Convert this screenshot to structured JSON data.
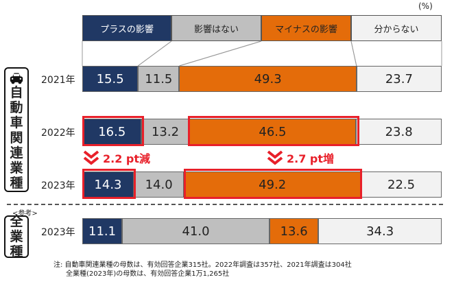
{
  "unit": "(%)",
  "legend": [
    {
      "key": "plus",
      "label": "プラスの影響"
    },
    {
      "key": "none",
      "label": "影響はない"
    },
    {
      "key": "minus",
      "label": "マイナスの影響"
    },
    {
      "key": "unknown",
      "label": "分からない"
    }
  ],
  "colors": {
    "plus": "#203864",
    "none": "#bfbfbf",
    "minus": "#e46c0a",
    "unknown": "#f2f2f2",
    "highlight": "#e8202a"
  },
  "group_auto": {
    "label_chars": [
      "自",
      "動",
      "車",
      "関",
      "連",
      "業",
      "種"
    ],
    "icon": "car-icon"
  },
  "group_all": {
    "label_chars": [
      "全",
      "業",
      "種"
    ],
    "ref_label": "<参考>"
  },
  "chart_data": {
    "type": "bar",
    "orientation": "horizontal-stacked-100",
    "categories": [
      "自動車関連業種 2021年",
      "自動車関連業種 2022年",
      "自動車関連業種 2023年",
      "全業種 2023年"
    ],
    "year_labels": [
      "2021年",
      "2022年",
      "2023年",
      "2023年"
    ],
    "series": [
      {
        "name": "プラスの影響",
        "values": [
          15.5,
          16.5,
          14.3,
          11.1
        ]
      },
      {
        "name": "影響はない",
        "values": [
          11.5,
          13.2,
          14.0,
          41.0
        ]
      },
      {
        "name": "マイナスの影響",
        "values": [
          49.3,
          46.5,
          49.2,
          13.6
        ]
      },
      {
        "name": "分からない",
        "values": [
          23.7,
          23.8,
          22.5,
          34.3
        ]
      }
    ],
    "annotations": [
      {
        "text": "2.2 pt減",
        "series": "プラスの影響"
      },
      {
        "text": "2.7 pt増",
        "series": "マイナスの影響"
      }
    ],
    "xlim": [
      0,
      100
    ]
  },
  "notes": [
    "注: 自動車関連業種の母数は、有効回答企業315社。2022年調査は357社、2021年調査は304社",
    "全業種(2023年)の母数は、有効回答企業1万1,265社"
  ]
}
